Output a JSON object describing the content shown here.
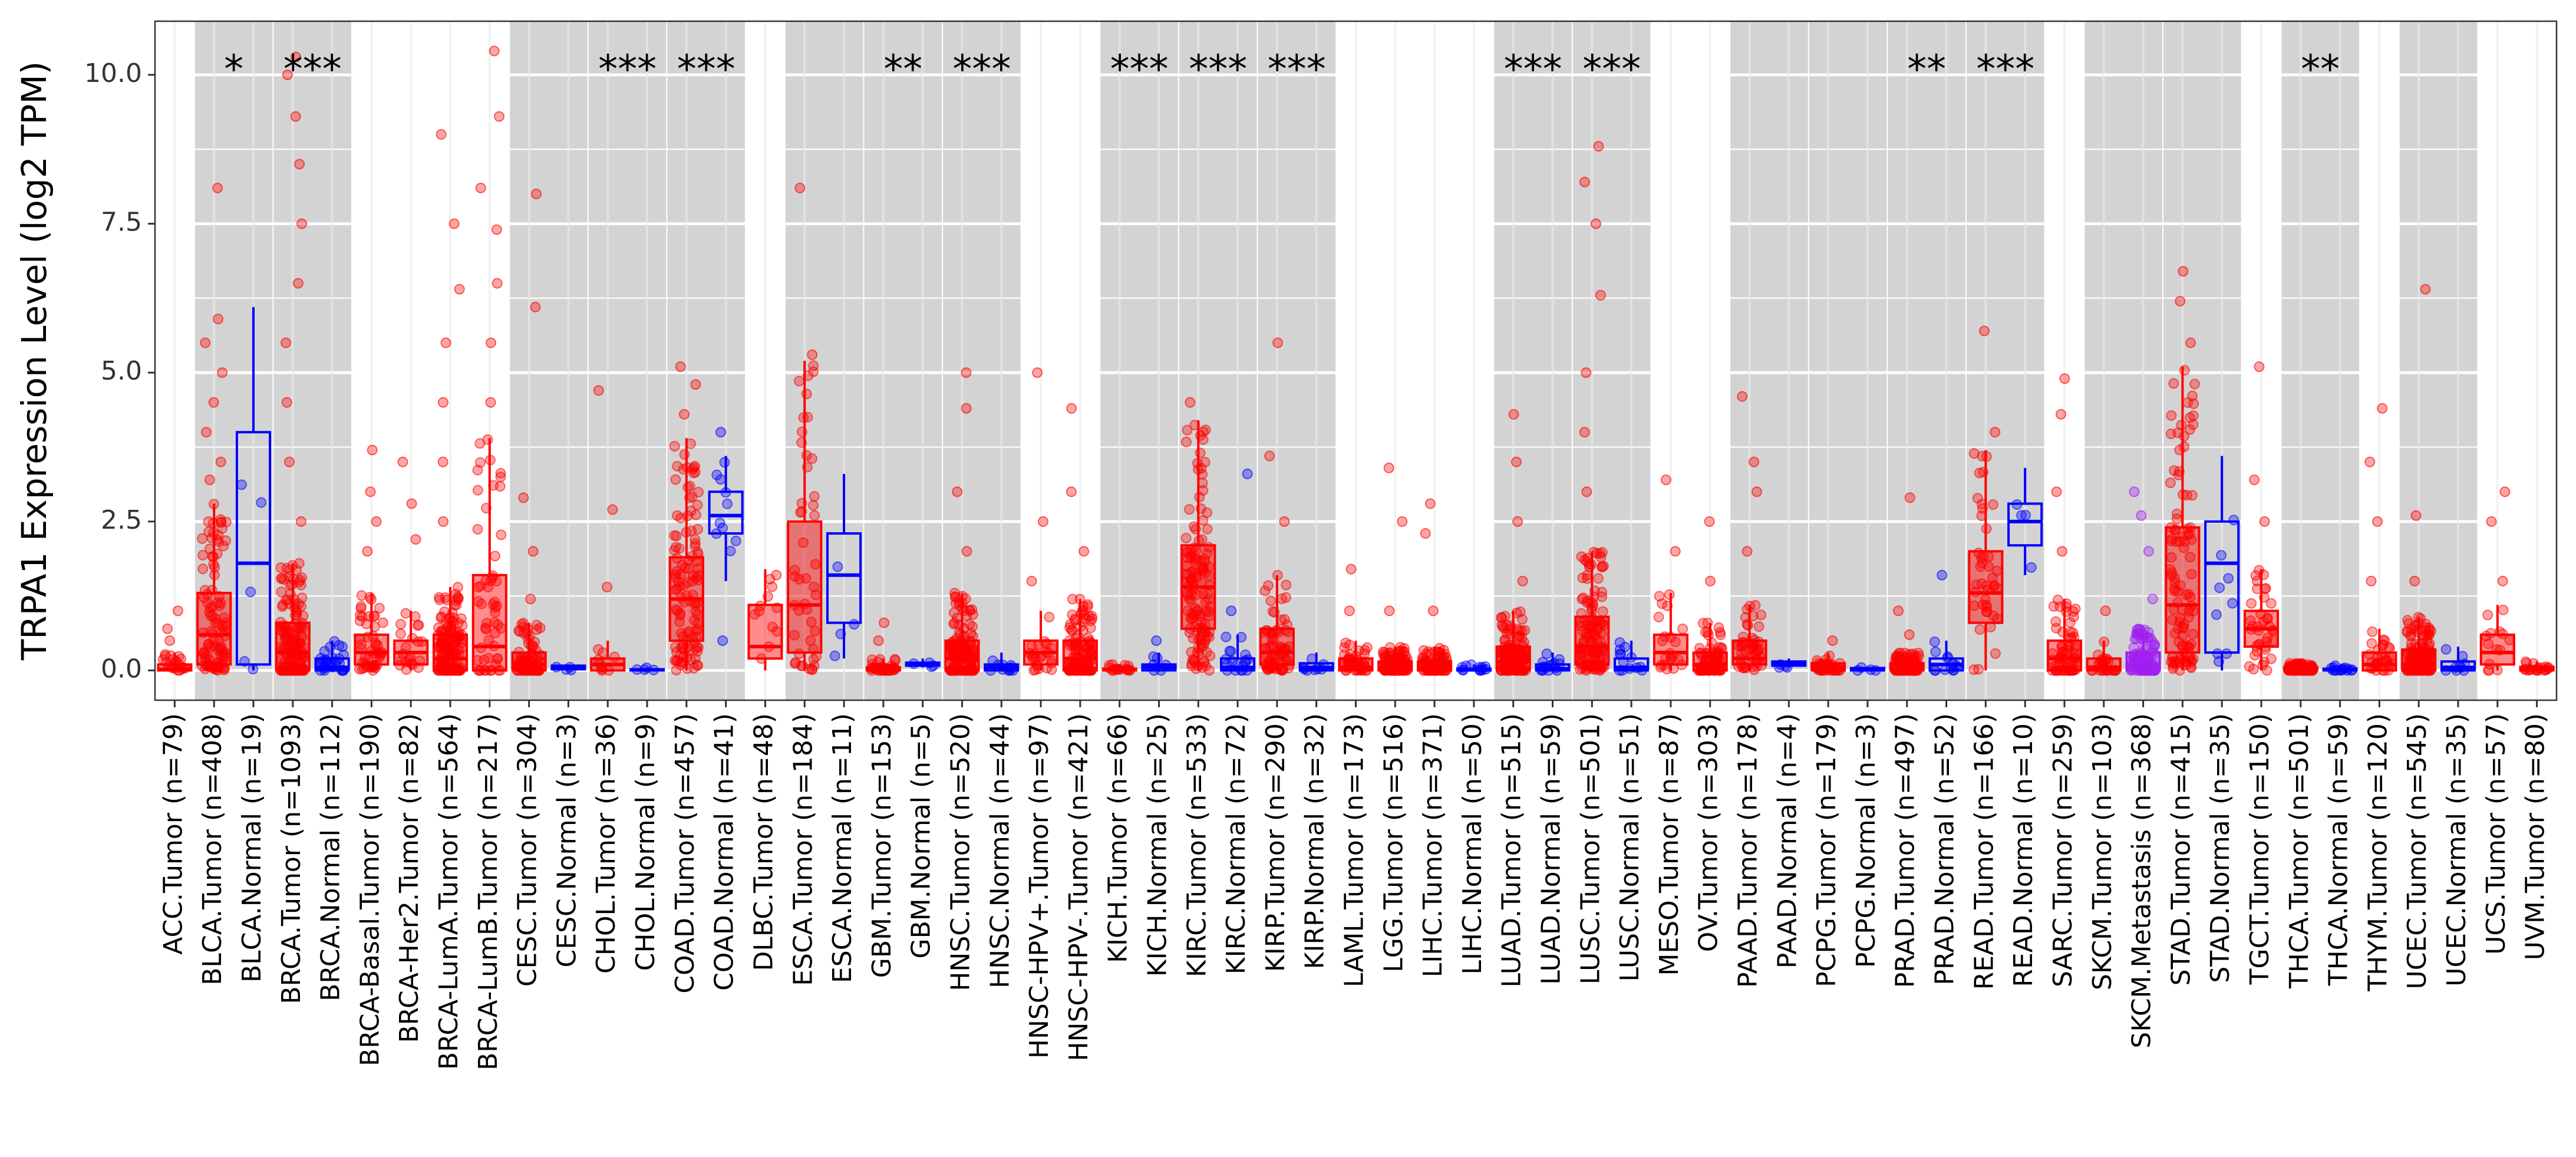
{
  "chart_data": {
    "type": "boxplot",
    "title": "",
    "xlabel": "",
    "ylabel": "TRPA1 Expression Level (log2 TPM)",
    "ylim": [
      -0.5,
      10.9
    ],
    "yticks": [
      0.0,
      2.5,
      5.0,
      7.5,
      10.0
    ],
    "ytick_labels": [
      "0.0",
      "2.5",
      "5.0",
      "7.5",
      "10.0"
    ],
    "colors": {
      "tumor": "#ff0000",
      "normal": "#0000ff",
      "metastasis": "#a020f0",
      "panel_shade": "#d3d3d3",
      "grid": "#ebebeb"
    },
    "shaded_groups": [
      "BLCA",
      "BRCA",
      "CESC",
      "CHOL",
      "COAD",
      "ESCA",
      "GBM",
      "HNSC",
      "KICH",
      "KIRC",
      "KIRP",
      "LUAD",
      "LUSC",
      "PAAD",
      "PCPG",
      "PRAD",
      "READ",
      "SKCM",
      "STAD",
      "THCA",
      "UCEC"
    ],
    "categories": [
      {
        "label": "ACC.Tumor (n=79)",
        "group": "ACC",
        "kind": "tumor",
        "q1": 0.0,
        "median": 0.02,
        "q3": 0.1,
        "lo": 0.0,
        "hi": 0.3,
        "outliers": [
          0.5,
          0.7,
          1.0
        ],
        "sig": ""
      },
      {
        "label": "BLCA.Tumor (n=408)",
        "group": "BLCA",
        "kind": "tumor",
        "q1": 0.1,
        "median": 0.6,
        "q3": 1.3,
        "lo": 0.0,
        "hi": 2.8,
        "outliers": [
          3.2,
          3.5,
          4.0,
          4.5,
          5.0,
          5.5,
          5.9,
          8.1
        ],
        "sig": "*"
      },
      {
        "label": "BLCA.Normal (n=19)",
        "group": "BLCA",
        "kind": "normal",
        "q1": 0.1,
        "median": 1.8,
        "q3": 4.0,
        "lo": 0.0,
        "hi": 6.1,
        "outliers": [],
        "sig": ""
      },
      {
        "label": "BRCA.Tumor (n=1093)",
        "group": "BRCA",
        "kind": "tumor",
        "q1": 0.0,
        "median": 0.3,
        "q3": 0.8,
        "lo": 0.0,
        "hi": 1.8,
        "outliers": [
          2.5,
          3.5,
          4.5,
          5.5,
          6.5,
          7.5,
          8.5,
          9.3,
          10.0,
          10.3
        ],
        "sig": "***"
      },
      {
        "label": "BRCA.Normal (n=112)",
        "group": "BRCA",
        "kind": "normal",
        "q1": 0.0,
        "median": 0.05,
        "q3": 0.2,
        "lo": 0.0,
        "hi": 0.5,
        "outliers": [],
        "sig": ""
      },
      {
        "label": "BRCA-Basal.Tumor (n=190)",
        "group": "BRCA-Basal",
        "kind": "tumor",
        "q1": 0.1,
        "median": 0.3,
        "q3": 0.6,
        "lo": 0.0,
        "hi": 1.3,
        "outliers": [
          2.0,
          2.5,
          3.0,
          3.7
        ],
        "sig": ""
      },
      {
        "label": "BRCA-Her2.Tumor (n=82)",
        "group": "BRCA-Her2",
        "kind": "tumor",
        "q1": 0.1,
        "median": 0.3,
        "q3": 0.5,
        "lo": 0.0,
        "hi": 1.0,
        "outliers": [
          2.2,
          2.8,
          3.5
        ],
        "sig": ""
      },
      {
        "label": "BRCA-LumA.Tumor (n=564)",
        "group": "BRCA-LumA",
        "kind": "tumor",
        "q1": 0.0,
        "median": 0.2,
        "q3": 0.6,
        "lo": 0.0,
        "hi": 1.4,
        "outliers": [
          2.5,
          3.5,
          4.5,
          5.5,
          6.4,
          7.5,
          9.0
        ],
        "sig": ""
      },
      {
        "label": "BRCA-LumB.Tumor (n=217)",
        "group": "BRCA-LumB",
        "kind": "tumor",
        "q1": 0.0,
        "median": 0.4,
        "q3": 1.6,
        "lo": 0.0,
        "hi": 3.9,
        "outliers": [
          4.5,
          5.5,
          6.5,
          7.4,
          8.1,
          9.3,
          10.4
        ],
        "sig": ""
      },
      {
        "label": "CESC.Tumor (n=304)",
        "group": "CESC",
        "kind": "tumor",
        "q1": 0.0,
        "median": 0.1,
        "q3": 0.3,
        "lo": 0.0,
        "hi": 0.8,
        "outliers": [
          1.2,
          2.0,
          2.9,
          6.1,
          8.0
        ],
        "sig": ""
      },
      {
        "label": "CESC.Normal (n=3)",
        "group": "CESC",
        "kind": "normal",
        "q1": 0.02,
        "median": 0.05,
        "q3": 0.08,
        "lo": 0.0,
        "hi": 0.1,
        "outliers": [],
        "sig": ""
      },
      {
        "label": "CHOL.Tumor (n=36)",
        "group": "CHOL",
        "kind": "tumor",
        "q1": 0.0,
        "median": 0.1,
        "q3": 0.2,
        "lo": 0.0,
        "hi": 0.5,
        "outliers": [
          1.4,
          2.7,
          4.7
        ],
        "sig": "***"
      },
      {
        "label": "CHOL.Normal (n=9)",
        "group": "CHOL",
        "kind": "normal",
        "q1": 0.0,
        "median": 0.01,
        "q3": 0.02,
        "lo": 0.0,
        "hi": 0.05,
        "outliers": [],
        "sig": ""
      },
      {
        "label": "COAD.Tumor (n=457)",
        "group": "COAD",
        "kind": "tumor",
        "q1": 0.5,
        "median": 1.2,
        "q3": 1.9,
        "lo": 0.0,
        "hi": 3.9,
        "outliers": [
          4.3,
          4.8,
          5.1
        ],
        "sig": "***"
      },
      {
        "label": "COAD.Normal (n=41)",
        "group": "COAD",
        "kind": "normal",
        "q1": 2.3,
        "median": 2.6,
        "q3": 3.0,
        "lo": 1.5,
        "hi": 3.6,
        "outliers": [
          0.5,
          4.0
        ],
        "sig": ""
      },
      {
        "label": "DLBC.Tumor (n=48)",
        "group": "DLBC",
        "kind": "tumor",
        "q1": 0.2,
        "median": 0.4,
        "q3": 1.1,
        "lo": 0.0,
        "hi": 1.7,
        "outliers": [],
        "sig": ""
      },
      {
        "label": "ESCA.Tumor (n=184)",
        "group": "ESCA",
        "kind": "tumor",
        "q1": 0.3,
        "median": 1.1,
        "q3": 2.5,
        "lo": 0.0,
        "hi": 5.2,
        "outliers": [
          5.3,
          8.1
        ],
        "sig": ""
      },
      {
        "label": "ESCA.Normal (n=11)",
        "group": "ESCA",
        "kind": "normal",
        "q1": 0.8,
        "median": 1.6,
        "q3": 2.3,
        "lo": 0.2,
        "hi": 3.3,
        "outliers": [],
        "sig": ""
      },
      {
        "label": "GBM.Tumor (n=153)",
        "group": "GBM",
        "kind": "tumor",
        "q1": 0.0,
        "median": 0.01,
        "q3": 0.05,
        "lo": 0.0,
        "hi": 0.2,
        "outliers": [
          0.5,
          0.8
        ],
        "sig": "**"
      },
      {
        "label": "GBM.Normal (n=5)",
        "group": "GBM",
        "kind": "normal",
        "q1": 0.08,
        "median": 0.1,
        "q3": 0.13,
        "lo": 0.05,
        "hi": 0.2,
        "outliers": [],
        "sig": ""
      },
      {
        "label": "HNSC.Tumor (n=520)",
        "group": "HNSC",
        "kind": "tumor",
        "q1": 0.0,
        "median": 0.2,
        "q3": 0.5,
        "lo": 0.0,
        "hi": 1.3,
        "outliers": [
          2.0,
          3.0,
          4.4,
          5.0
        ],
        "sig": "***"
      },
      {
        "label": "HNSC.Normal (n=44)",
        "group": "HNSC",
        "kind": "normal",
        "q1": 0.0,
        "median": 0.05,
        "q3": 0.1,
        "lo": 0.0,
        "hi": 0.3,
        "outliers": [],
        "sig": ""
      },
      {
        "label": "HNSC-HPV+.Tumor (n=97)",
        "group": "HNSC-HPV+",
        "kind": "tumor",
        "q1": 0.1,
        "median": 0.3,
        "q3": 0.5,
        "lo": 0.0,
        "hi": 1.0,
        "outliers": [
          1.5,
          2.5,
          5.0
        ],
        "sig": ""
      },
      {
        "label": "HNSC-HPV-.Tumor (n=421)",
        "group": "HNSC-HPV-",
        "kind": "tumor",
        "q1": 0.0,
        "median": 0.2,
        "q3": 0.5,
        "lo": 0.0,
        "hi": 1.2,
        "outliers": [
          2.0,
          3.0,
          4.4
        ],
        "sig": ""
      },
      {
        "label": "KICH.Tumor (n=66)",
        "group": "KICH",
        "kind": "tumor",
        "q1": 0.0,
        "median": 0.01,
        "q3": 0.03,
        "lo": 0.0,
        "hi": 0.1,
        "outliers": [],
        "sig": "***"
      },
      {
        "label": "KICH.Normal (n=25)",
        "group": "KICH",
        "kind": "normal",
        "q1": 0.0,
        "median": 0.05,
        "q3": 0.1,
        "lo": 0.0,
        "hi": 0.3,
        "outliers": [
          0.5
        ],
        "sig": ""
      },
      {
        "label": "KIRC.Tumor (n=533)",
        "group": "KIRC",
        "kind": "tumor",
        "q1": 0.7,
        "median": 1.4,
        "q3": 2.1,
        "lo": 0.0,
        "hi": 4.2,
        "outliers": [
          4.5
        ],
        "sig": "***"
      },
      {
        "label": "KIRC.Normal (n=72)",
        "group": "KIRC",
        "kind": "normal",
        "q1": 0.0,
        "median": 0.05,
        "q3": 0.2,
        "lo": 0.0,
        "hi": 0.6,
        "outliers": [
          1.0,
          3.3
        ],
        "sig": ""
      },
      {
        "label": "KIRP.Tumor (n=290)",
        "group": "KIRP",
        "kind": "tumor",
        "q1": 0.1,
        "median": 0.3,
        "q3": 0.7,
        "lo": 0.0,
        "hi": 1.6,
        "outliers": [
          2.5,
          3.6,
          5.5
        ],
        "sig": "***"
      },
      {
        "label": "KIRP.Normal (n=32)",
        "group": "KIRP",
        "kind": "normal",
        "q1": 0.0,
        "median": 0.05,
        "q3": 0.12,
        "lo": 0.0,
        "hi": 0.3,
        "outliers": [],
        "sig": ""
      },
      {
        "label": "LAML.Tumor (n=173)",
        "group": "LAML",
        "kind": "tumor",
        "q1": 0.0,
        "median": 0.05,
        "q3": 0.2,
        "lo": 0.0,
        "hi": 0.5,
        "outliers": [
          1.0,
          1.7
        ],
        "sig": ""
      },
      {
        "label": "LGG.Tumor (n=516)",
        "group": "LGG",
        "kind": "tumor",
        "q1": 0.0,
        "median": 0.05,
        "q3": 0.15,
        "lo": 0.0,
        "hi": 0.4,
        "outliers": [
          1.0,
          2.5,
          3.4
        ],
        "sig": ""
      },
      {
        "label": "LIHC.Tumor (n=371)",
        "group": "LIHC",
        "kind": "tumor",
        "q1": 0.0,
        "median": 0.05,
        "q3": 0.15,
        "lo": 0.0,
        "hi": 0.4,
        "outliers": [
          1.0,
          2.3,
          2.8
        ],
        "sig": ""
      },
      {
        "label": "LIHC.Normal (n=50)",
        "group": "LIHC",
        "kind": "normal",
        "q1": 0.0,
        "median": 0.01,
        "q3": 0.03,
        "lo": 0.0,
        "hi": 0.1,
        "outliers": [],
        "sig": ""
      },
      {
        "label": "LUAD.Tumor (n=515)",
        "group": "LUAD",
        "kind": "tumor",
        "q1": 0.0,
        "median": 0.15,
        "q3": 0.4,
        "lo": 0.0,
        "hi": 1.0,
        "outliers": [
          1.5,
          2.5,
          3.5,
          4.3
        ],
        "sig": "***"
      },
      {
        "label": "LUAD.Normal (n=59)",
        "group": "LUAD",
        "kind": "normal",
        "q1": 0.0,
        "median": 0.03,
        "q3": 0.1,
        "lo": 0.0,
        "hi": 0.3,
        "outliers": [],
        "sig": ""
      },
      {
        "label": "LUSC.Tumor (n=501)",
        "group": "LUSC",
        "kind": "tumor",
        "q1": 0.1,
        "median": 0.4,
        "q3": 0.9,
        "lo": 0.0,
        "hi": 2.0,
        "outliers": [
          3.0,
          4.0,
          5.0,
          6.3,
          7.5,
          8.2,
          8.8
        ],
        "sig": "***"
      },
      {
        "label": "LUSC.Normal (n=51)",
        "group": "LUSC",
        "kind": "normal",
        "q1": 0.0,
        "median": 0.05,
        "q3": 0.2,
        "lo": 0.0,
        "hi": 0.5,
        "outliers": [],
        "sig": ""
      },
      {
        "label": "MESO.Tumor (n=87)",
        "group": "MESO",
        "kind": "tumor",
        "q1": 0.1,
        "median": 0.3,
        "q3": 0.6,
        "lo": 0.0,
        "hi": 1.3,
        "outliers": [
          2.0,
          3.2
        ],
        "sig": ""
      },
      {
        "label": "OV.Tumor (n=303)",
        "group": "OV",
        "kind": "tumor",
        "q1": 0.0,
        "median": 0.1,
        "q3": 0.3,
        "lo": 0.0,
        "hi": 0.8,
        "outliers": [
          1.5,
          2.5
        ],
        "sig": ""
      },
      {
        "label": "PAAD.Tumor (n=178)",
        "group": "PAAD",
        "kind": "tumor",
        "q1": 0.1,
        "median": 0.2,
        "q3": 0.5,
        "lo": 0.0,
        "hi": 1.1,
        "outliers": [
          2.0,
          3.0,
          3.5,
          4.6
        ],
        "sig": ""
      },
      {
        "label": "PAAD.Normal (n=4)",
        "group": "PAAD",
        "kind": "normal",
        "q1": 0.08,
        "median": 0.12,
        "q3": 0.15,
        "lo": 0.05,
        "hi": 0.2,
        "outliers": [],
        "sig": ""
      },
      {
        "label": "PCPG.Tumor (n=179)",
        "group": "PCPG",
        "kind": "tumor",
        "q1": 0.0,
        "median": 0.05,
        "q3": 0.12,
        "lo": 0.0,
        "hi": 0.3,
        "outliers": [
          0.5
        ],
        "sig": ""
      },
      {
        "label": "PCPG.Normal (n=3)",
        "group": "PCPG",
        "kind": "normal",
        "q1": 0.0,
        "median": 0.02,
        "q3": 0.04,
        "lo": 0.0,
        "hi": 0.05,
        "outliers": [],
        "sig": ""
      },
      {
        "label": "PRAD.Tumor (n=497)",
        "group": "PRAD",
        "kind": "tumor",
        "q1": 0.0,
        "median": 0.05,
        "q3": 0.12,
        "lo": 0.0,
        "hi": 0.3,
        "outliers": [
          0.6,
          1.0,
          2.9
        ],
        "sig": "**"
      },
      {
        "label": "PRAD.Normal (n=52)",
        "group": "PRAD",
        "kind": "normal",
        "q1": 0.0,
        "median": 0.1,
        "q3": 0.2,
        "lo": 0.0,
        "hi": 0.5,
        "outliers": [
          1.6
        ],
        "sig": ""
      },
      {
        "label": "READ.Tumor (n=166)",
        "group": "READ",
        "kind": "tumor",
        "q1": 0.8,
        "median": 1.3,
        "q3": 2.0,
        "lo": 0.0,
        "hi": 3.7,
        "outliers": [
          4.0,
          5.7
        ],
        "sig": "***"
      },
      {
        "label": "READ.Normal (n=10)",
        "group": "READ",
        "kind": "normal",
        "q1": 2.1,
        "median": 2.5,
        "q3": 2.8,
        "lo": 1.6,
        "hi": 3.4,
        "outliers": [],
        "sig": ""
      },
      {
        "label": "SARC.Tumor (n=259)",
        "group": "SARC",
        "kind": "tumor",
        "q1": 0.0,
        "median": 0.2,
        "q3": 0.5,
        "lo": 0.0,
        "hi": 1.2,
        "outliers": [
          2.0,
          3.0,
          4.3,
          4.9
        ],
        "sig": ""
      },
      {
        "label": "SKCM.Tumor (n=103)",
        "group": "SKCM",
        "kind": "tumor",
        "q1": 0.0,
        "median": 0.05,
        "q3": 0.2,
        "lo": 0.0,
        "hi": 0.5,
        "outliers": [
          1.0
        ],
        "sig": ""
      },
      {
        "label": "SKCM.Metastasis (n=368)",
        "group": "SKCM",
        "kind": "metastasis",
        "q1": 0.0,
        "median": 0.1,
        "q3": 0.3,
        "lo": 0.0,
        "hi": 0.7,
        "outliers": [
          1.2,
          2.0,
          2.6,
          3.0
        ],
        "sig": ""
      },
      {
        "label": "STAD.Tumor (n=415)",
        "group": "STAD",
        "kind": "tumor",
        "q1": 0.3,
        "median": 1.1,
        "q3": 2.4,
        "lo": 0.0,
        "hi": 5.1,
        "outliers": [
          5.5,
          6.2,
          6.7
        ],
        "sig": ""
      },
      {
        "label": "STAD.Normal (n=35)",
        "group": "STAD",
        "kind": "normal",
        "q1": 0.3,
        "median": 1.8,
        "q3": 2.5,
        "lo": 0.0,
        "hi": 3.6,
        "outliers": [],
        "sig": ""
      },
      {
        "label": "TGCT.Tumor (n=150)",
        "group": "TGCT",
        "kind": "tumor",
        "q1": 0.4,
        "median": 0.7,
        "q3": 1.0,
        "lo": 0.0,
        "hi": 1.7,
        "outliers": [
          2.5,
          3.2,
          5.1
        ],
        "sig": ""
      },
      {
        "label": "THCA.Tumor (n=501)",
        "group": "THCA",
        "kind": "tumor",
        "q1": 0.0,
        "median": 0.02,
        "q3": 0.05,
        "lo": 0.0,
        "hi": 0.12,
        "outliers": [],
        "sig": "**"
      },
      {
        "label": "THCA.Normal (n=59)",
        "group": "THCA",
        "kind": "normal",
        "q1": 0.0,
        "median": 0.01,
        "q3": 0.03,
        "lo": 0.0,
        "hi": 0.08,
        "outliers": [],
        "sig": ""
      },
      {
        "label": "THYM.Tumor (n=120)",
        "group": "THYM",
        "kind": "tumor",
        "q1": 0.0,
        "median": 0.1,
        "q3": 0.3,
        "lo": 0.0,
        "hi": 0.7,
        "outliers": [
          1.5,
          2.5,
          3.5,
          4.4
        ],
        "sig": ""
      },
      {
        "label": "UCEC.Tumor (n=545)",
        "group": "UCEC",
        "kind": "tumor",
        "q1": 0.0,
        "median": 0.1,
        "q3": 0.35,
        "lo": 0.0,
        "hi": 0.9,
        "outliers": [
          1.5,
          2.6,
          6.4
        ],
        "sig": ""
      },
      {
        "label": "UCEC.Normal (n=35)",
        "group": "UCEC",
        "kind": "normal",
        "q1": 0.0,
        "median": 0.05,
        "q3": 0.15,
        "lo": 0.0,
        "hi": 0.4,
        "outliers": [],
        "sig": ""
      },
      {
        "label": "UCS.Tumor (n=57)",
        "group": "UCS",
        "kind": "tumor",
        "q1": 0.1,
        "median": 0.3,
        "q3": 0.6,
        "lo": 0.0,
        "hi": 1.1,
        "outliers": [
          1.5,
          2.5,
          3.0
        ],
        "sig": ""
      },
      {
        "label": "UVM.Tumor (n=80)",
        "group": "UVM",
        "kind": "tumor",
        "q1": 0.0,
        "median": 0.02,
        "q3": 0.06,
        "lo": 0.0,
        "hi": 0.15,
        "outliers": [],
        "sig": ""
      }
    ]
  }
}
